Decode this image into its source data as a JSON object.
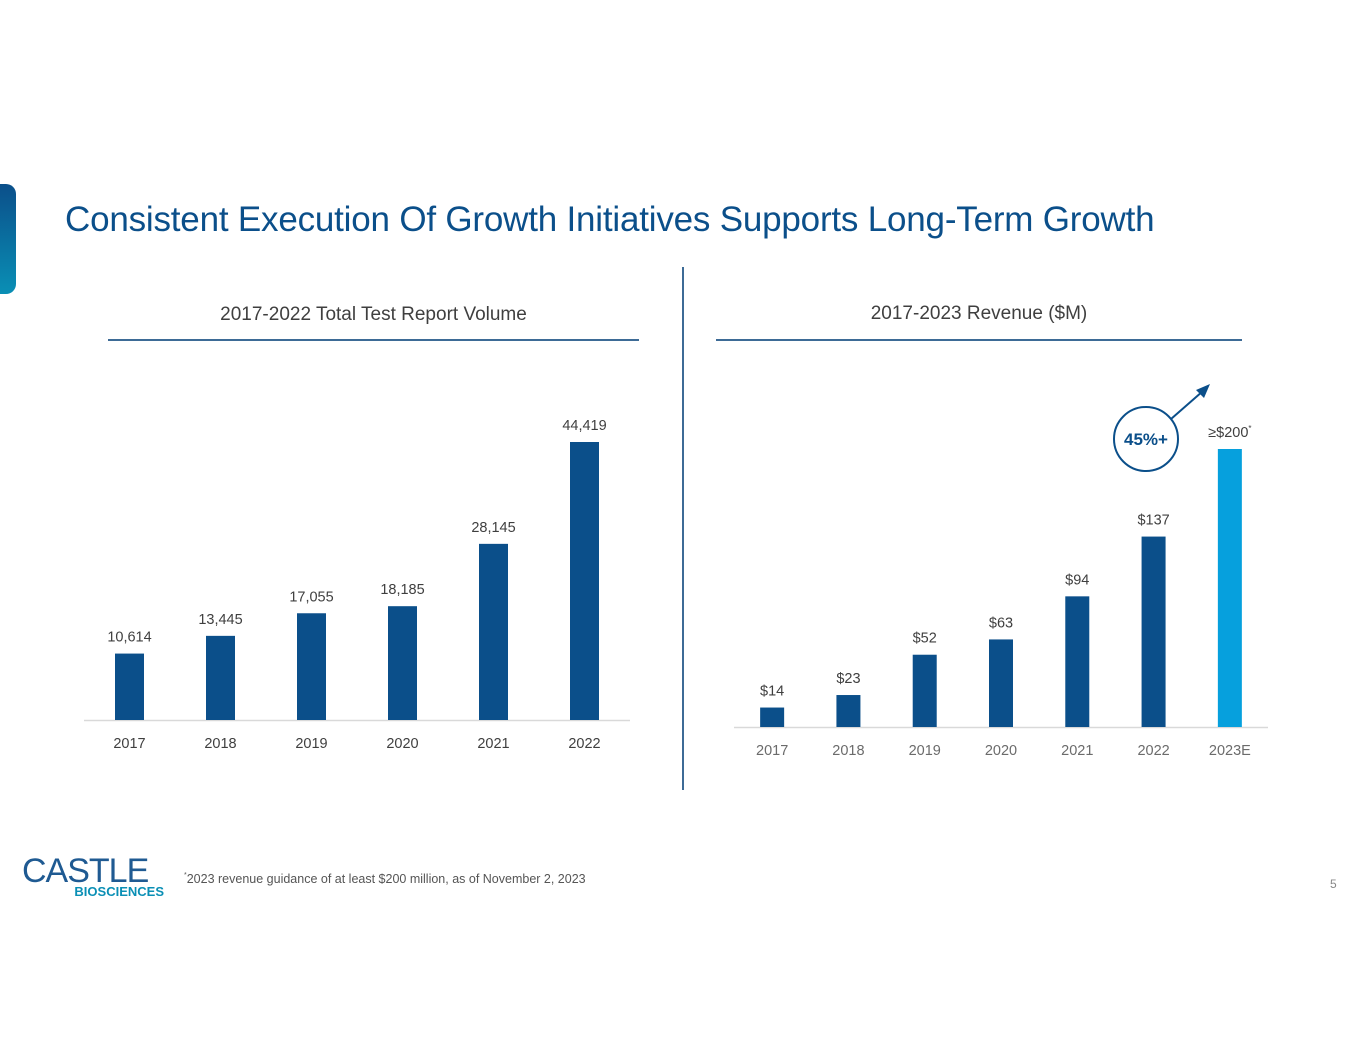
{
  "slide": {
    "title": "Consistent Execution Of Growth Initiatives Supports Long-Term Growth",
    "page_number": "5",
    "footnote_marker": "*",
    "footnote": "2023 revenue guidance of at least $200 million, as of November 2, 2023",
    "logo": {
      "main": "CASTLE",
      "sub": "BIOSCIENCES"
    },
    "colors": {
      "primary": "#0b4f8a",
      "highlight": "#06a0dd",
      "text": "#3f3f3f",
      "axis_label": "#555555"
    }
  },
  "chart_data": [
    {
      "type": "bar",
      "title": "2017-2022 Total Test Report Volume",
      "xlabel": "",
      "ylabel": "",
      "categories": [
        "2017",
        "2018",
        "2019",
        "2020",
        "2021",
        "2022"
      ],
      "values": [
        10614,
        13445,
        17055,
        18185,
        28145,
        44419
      ],
      "data_labels": [
        "10,614",
        "13,445",
        "17,055",
        "18,185",
        "28,145",
        "44,419"
      ],
      "ylim": [
        0,
        44419
      ],
      "grid": false,
      "legend": "none"
    },
    {
      "type": "bar",
      "title": "2017-2023 Revenue ($M)",
      "xlabel": "",
      "ylabel": "",
      "categories": [
        "2017",
        "2018",
        "2019",
        "2020",
        "2021",
        "2022",
        "2023E"
      ],
      "values": [
        14,
        23,
        52,
        63,
        94,
        137,
        200
      ],
      "data_labels": [
        "$14",
        "$23",
        "$52",
        "$63",
        "$94",
        "$137",
        "≥$200"
      ],
      "highlight_index": 6,
      "highlight_label_marker": "*",
      "annotation": {
        "text": "45%+",
        "type": "circle-with-arrow",
        "meaning": "growth"
      },
      "ylim": [
        0,
        200
      ],
      "grid": false,
      "legend": "none"
    }
  ]
}
